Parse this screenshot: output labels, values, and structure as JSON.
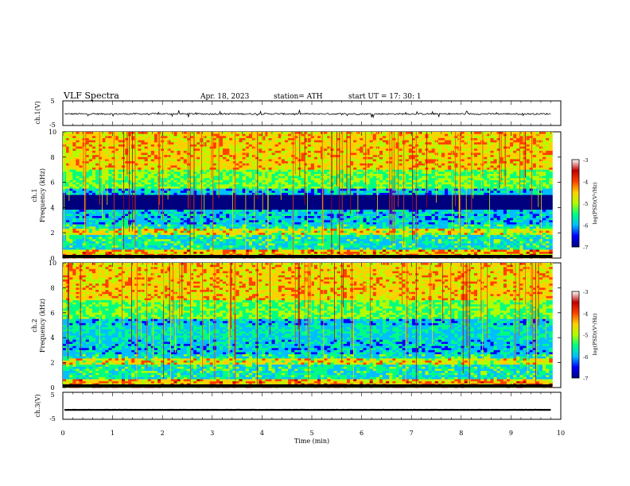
{
  "header": {
    "title": "VLF  Spectra",
    "date": "Apr. 18, 2023",
    "station": "station= ATH",
    "start": "start  UT  =   17: 30: 1"
  },
  "chart_data": [
    {
      "type": "line",
      "name": "ch1-waveform",
      "ylabel": "ch.1(V)",
      "ylim": [
        -5,
        5
      ],
      "yticks": [
        "5",
        "-5"
      ],
      "xlim": [
        0,
        10
      ],
      "baseline": -0.3,
      "noise": 0.6
    },
    {
      "type": "heatmap",
      "name": "ch1-spectrogram",
      "ylabel": [
        "ch.1",
        "Frequency (kHz)"
      ],
      "ylim": [
        0,
        10
      ],
      "yticks": [
        "0",
        "2",
        "4",
        "6",
        "8",
        "10"
      ],
      "xlim": [
        0,
        9.83
      ],
      "colorbar": {
        "label": "log(PSD)(V²/Hz)",
        "range": [
          -7,
          -3
        ],
        "ticks": [
          "-3",
          "-4",
          "-5",
          "-6",
          "-7"
        ]
      }
    },
    {
      "type": "heatmap",
      "name": "ch2-spectrogram",
      "ylabel": [
        "ch.2",
        "Frequency (kHz)"
      ],
      "ylim": [
        0,
        10
      ],
      "yticks": [
        "0",
        "2",
        "4",
        "6",
        "8",
        "10"
      ],
      "xlim": [
        0,
        9.83
      ],
      "colorbar": {
        "label": "log(PSD)(V²/Hz)",
        "range": [
          -7,
          -3
        ],
        "ticks": [
          "-3",
          "-4",
          "-5",
          "-6",
          "-7"
        ]
      }
    },
    {
      "type": "line",
      "name": "ch3-waveform",
      "ylabel": "ch.3(V)",
      "ylim": [
        -5,
        5
      ],
      "yticks": [
        "5",
        "-5"
      ],
      "xlim": [
        0,
        10
      ],
      "baseline": -1.5,
      "noise": 0.05
    }
  ],
  "xaxis": {
    "label": "Time  (min)",
    "ticks": [
      "0",
      "1",
      "2",
      "3",
      "4",
      "5",
      "6",
      "7",
      "8",
      "9",
      "10"
    ]
  },
  "colors": {
    "colormap": [
      "#00007f",
      "#0000ff",
      "#00bfff",
      "#00ff80",
      "#b0ff00",
      "#ffd000",
      "#ff4000",
      "#bf0000",
      "#ffffff"
    ]
  }
}
